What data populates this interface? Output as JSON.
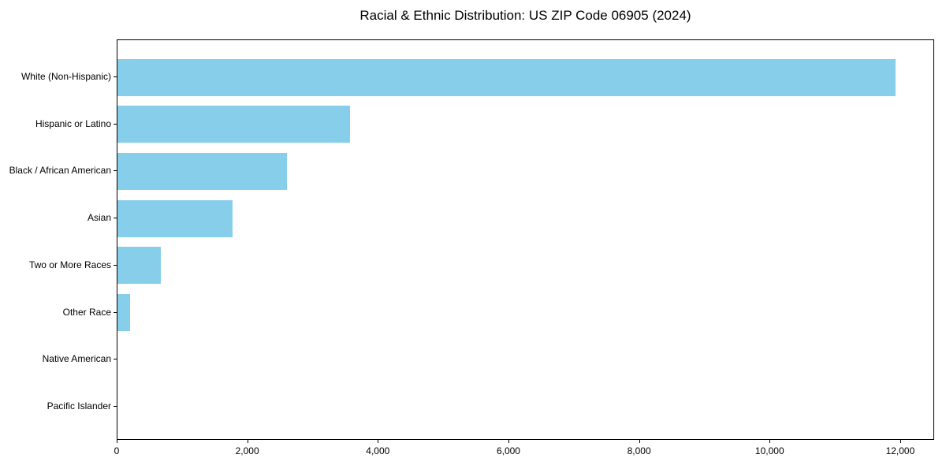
{
  "chart_data": {
    "type": "bar",
    "orientation": "horizontal",
    "title": "Racial & Ethnic Distribution: US ZIP Code 06905 (2024)",
    "categories": [
      "White (Non-Hispanic)",
      "Hispanic or Latino",
      "Black / African American",
      "Asian",
      "Two or More Races",
      "Other Race",
      "Native American",
      "Pacific Islander"
    ],
    "values": [
      11920,
      3560,
      2600,
      1760,
      660,
      190,
      0,
      0
    ],
    "xlabel": "",
    "ylabel": "",
    "xlim": [
      0,
      12520
    ],
    "xticks": [
      0,
      2000,
      4000,
      6000,
      8000,
      10000,
      12000
    ],
    "xtick_labels": [
      "0",
      "2,000",
      "4,000",
      "6,000",
      "8,000",
      "10,000",
      "12,000"
    ],
    "bar_color": "#87CEEB",
    "grid": "off",
    "legend": "none",
    "frame": "box"
  }
}
